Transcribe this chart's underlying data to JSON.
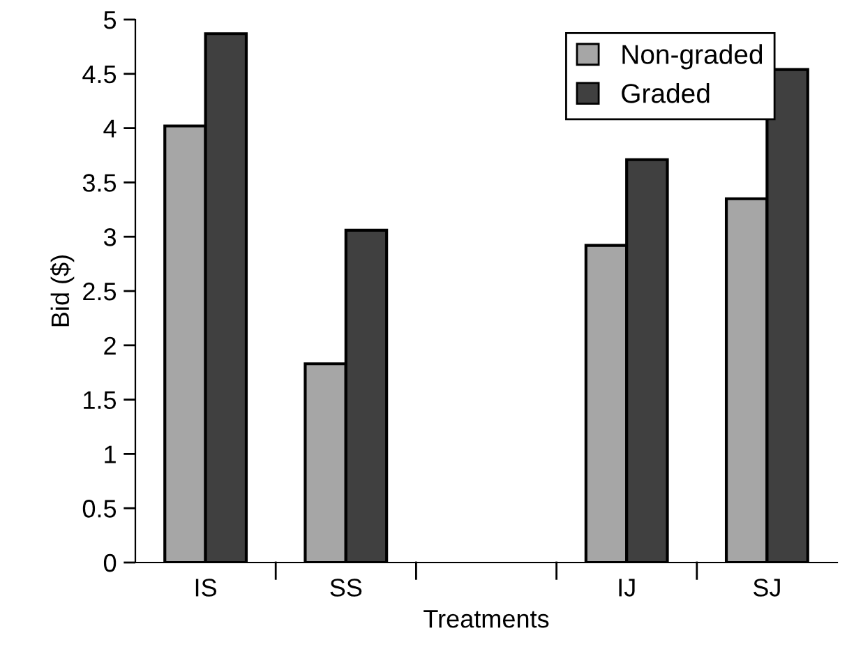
{
  "chart_data": {
    "type": "bar",
    "xlabel": "Treatments",
    "ylabel": "Bid ($)",
    "categories": [
      "IS",
      "SS",
      null,
      "IJ",
      "SJ"
    ],
    "series": [
      {
        "name": "Non-graded",
        "color": "#a6a6a6",
        "values": [
          4.02,
          1.83,
          null,
          2.92,
          3.35
        ]
      },
      {
        "name": "Graded",
        "color": "#404040",
        "values": [
          4.87,
          3.06,
          null,
          3.71,
          4.54
        ]
      }
    ],
    "ylim": [
      0,
      5
    ],
    "yticks": [
      0,
      0.5,
      1,
      1.5,
      2,
      2.5,
      3,
      3.5,
      4,
      4.5,
      5
    ],
    "grid": false,
    "legend": "top right"
  }
}
